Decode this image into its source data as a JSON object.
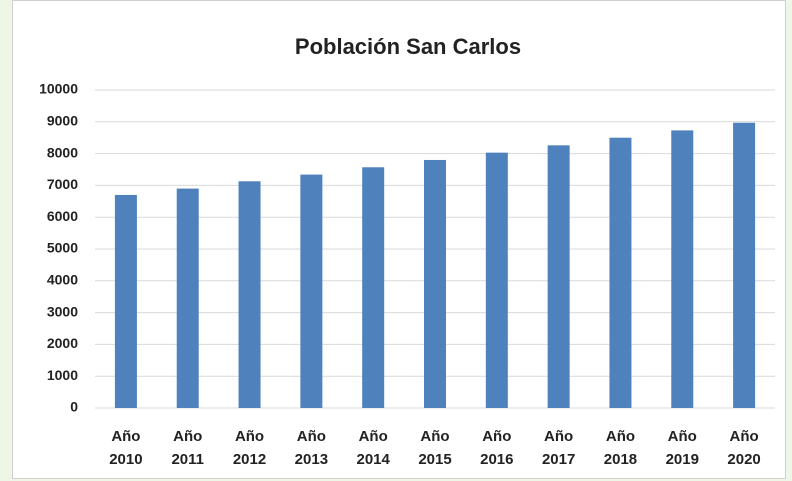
{
  "chart_data": {
    "type": "bar",
    "title": "Población San Carlos",
    "categories": [
      "Año 2010",
      "Año 2011",
      "Año 2012",
      "Año 2013",
      "Año 2014",
      "Año 2015",
      "Año 2016",
      "Año 2017",
      "Año 2018",
      "Año 2019",
      "Año 2020"
    ],
    "values": [
      6700,
      6900,
      7130,
      7340,
      7570,
      7800,
      8030,
      8260,
      8500,
      8730,
      8970
    ],
    "color": "#4f81bd",
    "ylim": [
      0,
      10000
    ],
    "yticks": [
      0,
      1000,
      2000,
      3000,
      4000,
      5000,
      6000,
      7000,
      8000,
      9000,
      10000
    ],
    "grid": true
  }
}
